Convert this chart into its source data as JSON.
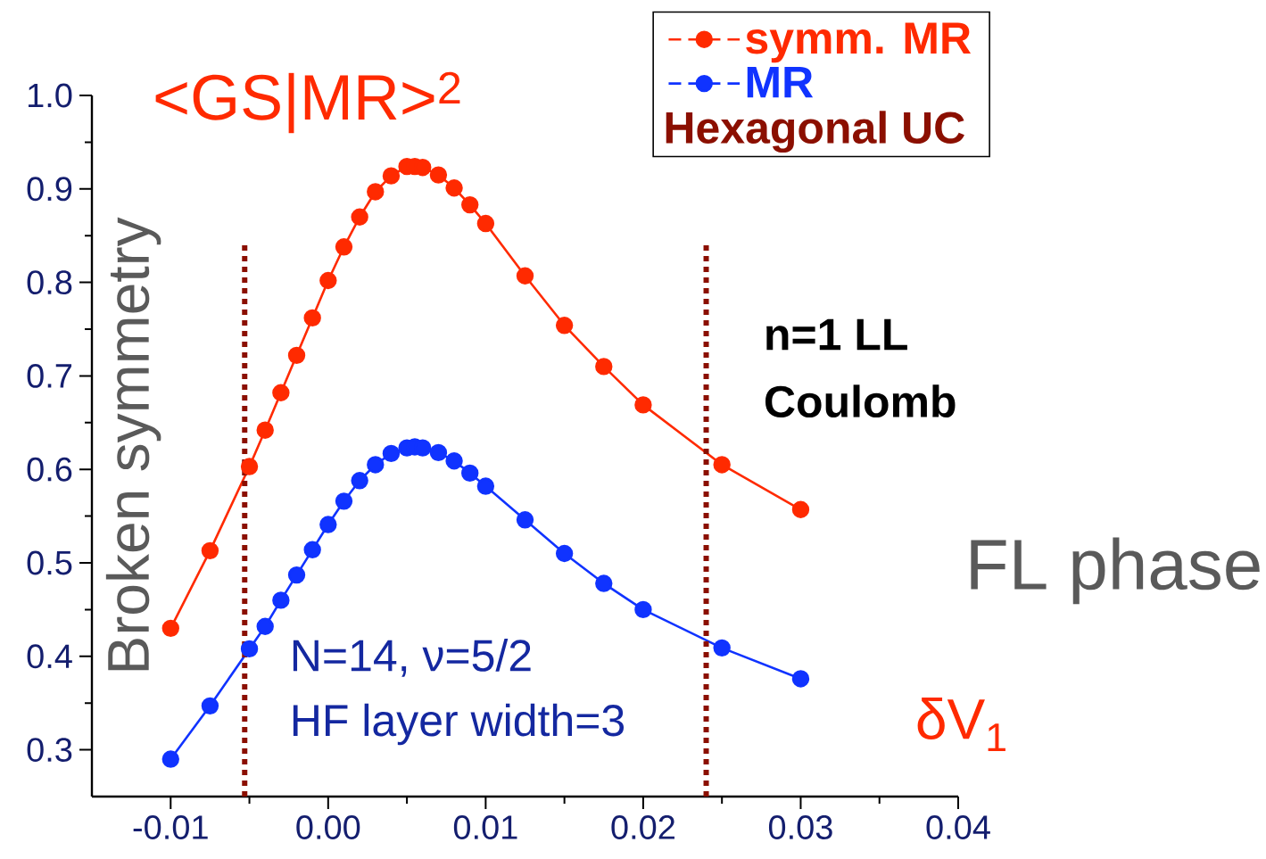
{
  "chart_data": {
    "type": "line",
    "title": "<GS|MR>$^{2}$",
    "xlabel": "δV$_{1}$",
    "legend_title": "Hexagonal UC",
    "x": [
      -0.01,
      -0.0075,
      -0.005,
      -0.004,
      -0.003,
      -0.002,
      -0.001,
      0.0,
      0.001,
      0.002,
      0.003,
      0.004,
      0.005,
      0.0055,
      0.006,
      0.007,
      0.008,
      0.009,
      0.01,
      0.0125,
      0.015,
      0.0175,
      0.02,
      0.025,
      0.03
    ],
    "series": [
      {
        "name": "symm. MR",
        "color": "#ff2a00",
        "values": [
          0.43,
          0.513,
          0.603,
          0.642,
          0.682,
          0.722,
          0.762,
          0.802,
          0.838,
          0.87,
          0.897,
          0.914,
          0.924,
          0.924,
          0.923,
          0.915,
          0.901,
          0.883,
          0.863,
          0.807,
          0.754,
          0.71,
          0.669,
          0.605,
          0.557
        ]
      },
      {
        "name": "MR",
        "color": "#1033ff",
        "values": [
          0.29,
          0.347,
          0.408,
          0.432,
          0.46,
          0.487,
          0.514,
          0.541,
          0.566,
          0.588,
          0.605,
          0.617,
          0.623,
          0.624,
          0.623,
          0.618,
          0.609,
          0.596,
          0.582,
          0.546,
          0.51,
          0.478,
          0.45,
          0.409,
          0.376
        ]
      }
    ],
    "xlim": [
      -0.015,
      0.04
    ],
    "xticks": [
      {
        "value": -0.01,
        "label": "-0.01"
      },
      {
        "value": 0.0,
        "label": "0.00"
      },
      {
        "value": 0.01,
        "label": "0.01"
      },
      {
        "value": 0.02,
        "label": "0.02"
      },
      {
        "value": 0.03,
        "label": "0.03"
      },
      {
        "value": 0.04,
        "label": "0.04"
      }
    ],
    "ylim": [
      0.25,
      1.0
    ],
    "yticks": [
      {
        "value": 0.3,
        "label": "0.3"
      },
      {
        "value": 0.4,
        "label": "0.4"
      },
      {
        "value": 0.5,
        "label": "0.5"
      },
      {
        "value": 0.6,
        "label": "0.6"
      },
      {
        "value": 0.7,
        "label": "0.7"
      },
      {
        "value": 0.8,
        "label": "0.8"
      },
      {
        "value": 0.9,
        "label": "0.9"
      },
      {
        "value": 1.0,
        "label": "1.0"
      }
    ],
    "ref_lines": [
      {
        "axis": "x",
        "value": -0.0053,
        "color": "#8b0f00",
        "line_style": "dotted"
      },
      {
        "axis": "x",
        "value": 0.024,
        "color": "#8b0f00",
        "line_style": "dotted"
      }
    ],
    "annotations": [
      "Broken symmetry",
      "n=1 LL",
      "Coulomb",
      "FL phase",
      "N=14, ν=5/2",
      "HF layer width=3"
    ],
    "legend": "top right",
    "marker": "circle",
    "line_style": "solid",
    "grid": false
  }
}
